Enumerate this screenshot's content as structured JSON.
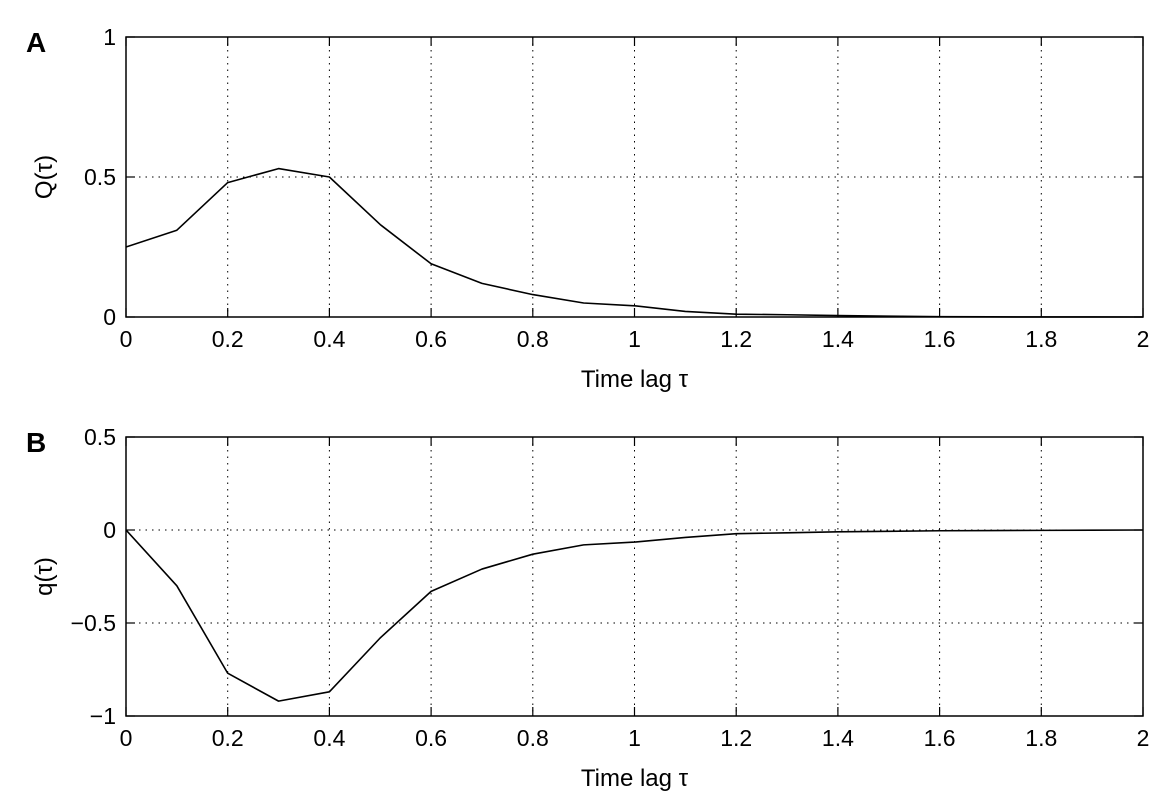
{
  "chart_data": [
    {
      "type": "line",
      "panel_label": "A",
      "xlabel": "Time lag τ",
      "ylabel": "Q(τ)",
      "xlim": [
        0,
        2
      ],
      "ylim": [
        0,
        1
      ],
      "grid": true,
      "x_ticks": [
        0,
        0.2,
        0.4,
        0.6,
        0.8,
        1,
        1.2,
        1.4,
        1.6,
        1.8,
        2
      ],
      "y_ticks": [
        0,
        0.5,
        1
      ],
      "x_tick_labels": [
        "0",
        "0.2",
        "0.4",
        "0.6",
        "0.8",
        "1",
        "1.2",
        "1.4",
        "1.6",
        "1.8",
        "2"
      ],
      "y_tick_labels": [
        "0",
        "0.5",
        "1"
      ],
      "series": [
        {
          "x": [
            0,
            0.1,
            0.2,
            0.3,
            0.4,
            0.5,
            0.6,
            0.7,
            0.8,
            0.9,
            1.0,
            1.1,
            1.2,
            1.3,
            1.4,
            1.5,
            1.6,
            1.7,
            1.8,
            1.9,
            2.0
          ],
          "y": [
            0.25,
            0.31,
            0.48,
            0.53,
            0.5,
            0.33,
            0.19,
            0.12,
            0.08,
            0.05,
            0.04,
            0.02,
            0.01,
            0.008,
            0.005,
            0.003,
            0.001,
            0.0005,
            0.0002,
            0.0001,
            0.0
          ],
          "color": "#000000"
        }
      ]
    },
    {
      "type": "line",
      "panel_label": "B",
      "xlabel": "Time lag τ",
      "ylabel": "q(τ)",
      "xlim": [
        0,
        2
      ],
      "ylim": [
        -1,
        0.5
      ],
      "grid": true,
      "x_ticks": [
        0,
        0.2,
        0.4,
        0.6,
        0.8,
        1,
        1.2,
        1.4,
        1.6,
        1.8,
        2
      ],
      "y_ticks": [
        -1,
        -0.5,
        0,
        0.5
      ],
      "x_tick_labels": [
        "0",
        "0.2",
        "0.4",
        "0.6",
        "0.8",
        "1",
        "1.2",
        "1.4",
        "1.6",
        "1.8",
        "2"
      ],
      "y_tick_labels": [
        "−1",
        "−0.5",
        "0",
        "0.5"
      ],
      "series": [
        {
          "x": [
            0,
            0.1,
            0.2,
            0.3,
            0.4,
            0.5,
            0.6,
            0.7,
            0.8,
            0.9,
            1.0,
            1.1,
            1.2,
            1.3,
            1.4,
            1.5,
            1.6,
            1.7,
            1.8,
            1.9,
            2.0
          ],
          "y": [
            0,
            -0.3,
            -0.77,
            -0.92,
            -0.87,
            -0.58,
            -0.33,
            -0.21,
            -0.13,
            -0.08,
            -0.065,
            -0.04,
            -0.02,
            -0.015,
            -0.01,
            -0.007,
            -0.004,
            -0.003,
            -0.002,
            -0.001,
            0.0
          ],
          "color": "#000000"
        }
      ]
    }
  ]
}
